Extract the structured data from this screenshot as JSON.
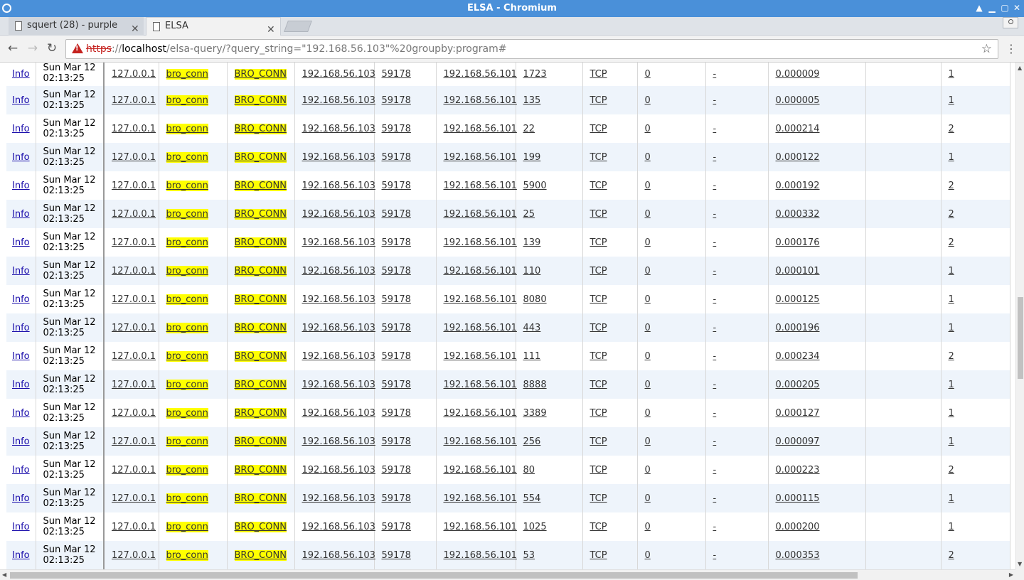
{
  "window": {
    "title": "ELSA - Chromium"
  },
  "tabs": [
    {
      "label": "squert (28) - purple",
      "active": false
    },
    {
      "label": "ELSA",
      "active": true
    }
  ],
  "address_bar": {
    "scheme": "https",
    "host_prefix": "://",
    "host": "localhost",
    "path": "/elsa-query/?query_string=\"192.168.56.103\"%20groupby:program#"
  },
  "results": {
    "info_label": "Info",
    "rows": [
      {
        "date": "Sun Mar 12 02:13:25",
        "host": "127.0.0.1",
        "program": "bro_conn",
        "class": "BRO_CONN",
        "srcip": "192.168.56.103",
        "srcport": "59178",
        "dstip": "192.168.56.101",
        "dstport": "1723",
        "proto": "TCP",
        "c1": "0",
        "c2": "-",
        "duration": "0.000009",
        "c3": "",
        "count": "1"
      },
      {
        "date": "Sun Mar 12 02:13:25",
        "host": "127.0.0.1",
        "program": "bro_conn",
        "class": "BRO_CONN",
        "srcip": "192.168.56.103",
        "srcport": "59178",
        "dstip": "192.168.56.101",
        "dstport": "135",
        "proto": "TCP",
        "c1": "0",
        "c2": "-",
        "duration": "0.000005",
        "c3": "",
        "count": "1"
      },
      {
        "date": "Sun Mar 12 02:13:25",
        "host": "127.0.0.1",
        "program": "bro_conn",
        "class": "BRO_CONN",
        "srcip": "192.168.56.103",
        "srcport": "59178",
        "dstip": "192.168.56.101",
        "dstport": "22",
        "proto": "TCP",
        "c1": "0",
        "c2": "-",
        "duration": "0.000214",
        "c3": "",
        "count": "2"
      },
      {
        "date": "Sun Mar 12 02:13:25",
        "host": "127.0.0.1",
        "program": "bro_conn",
        "class": "BRO_CONN",
        "srcip": "192.168.56.103",
        "srcport": "59178",
        "dstip": "192.168.56.101",
        "dstport": "199",
        "proto": "TCP",
        "c1": "0",
        "c2": "-",
        "duration": "0.000122",
        "c3": "",
        "count": "1"
      },
      {
        "date": "Sun Mar 12 02:13:25",
        "host": "127.0.0.1",
        "program": "bro_conn",
        "class": "BRO_CONN",
        "srcip": "192.168.56.103",
        "srcport": "59178",
        "dstip": "192.168.56.101",
        "dstport": "5900",
        "proto": "TCP",
        "c1": "0",
        "c2": "-",
        "duration": "0.000192",
        "c3": "",
        "count": "2"
      },
      {
        "date": "Sun Mar 12 02:13:25",
        "host": "127.0.0.1",
        "program": "bro_conn",
        "class": "BRO_CONN",
        "srcip": "192.168.56.103",
        "srcport": "59178",
        "dstip": "192.168.56.101",
        "dstport": "25",
        "proto": "TCP",
        "c1": "0",
        "c2": "-",
        "duration": "0.000332",
        "c3": "",
        "count": "2"
      },
      {
        "date": "Sun Mar 12 02:13:25",
        "host": "127.0.0.1",
        "program": "bro_conn",
        "class": "BRO_CONN",
        "srcip": "192.168.56.103",
        "srcport": "59178",
        "dstip": "192.168.56.101",
        "dstport": "139",
        "proto": "TCP",
        "c1": "0",
        "c2": "-",
        "duration": "0.000176",
        "c3": "",
        "count": "2"
      },
      {
        "date": "Sun Mar 12 02:13:25",
        "host": "127.0.0.1",
        "program": "bro_conn",
        "class": "BRO_CONN",
        "srcip": "192.168.56.103",
        "srcport": "59178",
        "dstip": "192.168.56.101",
        "dstport": "110",
        "proto": "TCP",
        "c1": "0",
        "c2": "-",
        "duration": "0.000101",
        "c3": "",
        "count": "1"
      },
      {
        "date": "Sun Mar 12 02:13:25",
        "host": "127.0.0.1",
        "program": "bro_conn",
        "class": "BRO_CONN",
        "srcip": "192.168.56.103",
        "srcport": "59178",
        "dstip": "192.168.56.101",
        "dstport": "8080",
        "proto": "TCP",
        "c1": "0",
        "c2": "-",
        "duration": "0.000125",
        "c3": "",
        "count": "1"
      },
      {
        "date": "Sun Mar 12 02:13:25",
        "host": "127.0.0.1",
        "program": "bro_conn",
        "class": "BRO_CONN",
        "srcip": "192.168.56.103",
        "srcport": "59178",
        "dstip": "192.168.56.101",
        "dstport": "443",
        "proto": "TCP",
        "c1": "0",
        "c2": "-",
        "duration": "0.000196",
        "c3": "",
        "count": "1"
      },
      {
        "date": "Sun Mar 12 02:13:25",
        "host": "127.0.0.1",
        "program": "bro_conn",
        "class": "BRO_CONN",
        "srcip": "192.168.56.103",
        "srcport": "59178",
        "dstip": "192.168.56.101",
        "dstport": "111",
        "proto": "TCP",
        "c1": "0",
        "c2": "-",
        "duration": "0.000234",
        "c3": "",
        "count": "2"
      },
      {
        "date": "Sun Mar 12 02:13:25",
        "host": "127.0.0.1",
        "program": "bro_conn",
        "class": "BRO_CONN",
        "srcip": "192.168.56.103",
        "srcport": "59178",
        "dstip": "192.168.56.101",
        "dstport": "8888",
        "proto": "TCP",
        "c1": "0",
        "c2": "-",
        "duration": "0.000205",
        "c3": "",
        "count": "1"
      },
      {
        "date": "Sun Mar 12 02:13:25",
        "host": "127.0.0.1",
        "program": "bro_conn",
        "class": "BRO_CONN",
        "srcip": "192.168.56.103",
        "srcport": "59178",
        "dstip": "192.168.56.101",
        "dstport": "3389",
        "proto": "TCP",
        "c1": "0",
        "c2": "-",
        "duration": "0.000127",
        "c3": "",
        "count": "1"
      },
      {
        "date": "Sun Mar 12 02:13:25",
        "host": "127.0.0.1",
        "program": "bro_conn",
        "class": "BRO_CONN",
        "srcip": "192.168.56.103",
        "srcport": "59178",
        "dstip": "192.168.56.101",
        "dstport": "256",
        "proto": "TCP",
        "c1": "0",
        "c2": "-",
        "duration": "0.000097",
        "c3": "",
        "count": "1"
      },
      {
        "date": "Sun Mar 12 02:13:25",
        "host": "127.0.0.1",
        "program": "bro_conn",
        "class": "BRO_CONN",
        "srcip": "192.168.56.103",
        "srcport": "59178",
        "dstip": "192.168.56.101",
        "dstport": "80",
        "proto": "TCP",
        "c1": "0",
        "c2": "-",
        "duration": "0.000223",
        "c3": "",
        "count": "2"
      },
      {
        "date": "Sun Mar 12 02:13:25",
        "host": "127.0.0.1",
        "program": "bro_conn",
        "class": "BRO_CONN",
        "srcip": "192.168.56.103",
        "srcport": "59178",
        "dstip": "192.168.56.101",
        "dstport": "554",
        "proto": "TCP",
        "c1": "0",
        "c2": "-",
        "duration": "0.000115",
        "c3": "",
        "count": "1"
      },
      {
        "date": "Sun Mar 12 02:13:25",
        "host": "127.0.0.1",
        "program": "bro_conn",
        "class": "BRO_CONN",
        "srcip": "192.168.56.103",
        "srcport": "59178",
        "dstip": "192.168.56.101",
        "dstport": "1025",
        "proto": "TCP",
        "c1": "0",
        "c2": "-",
        "duration": "0.000200",
        "c3": "",
        "count": "1"
      },
      {
        "date": "Sun Mar 12 02:13:25",
        "host": "127.0.0.1",
        "program": "bro_conn",
        "class": "BRO_CONN",
        "srcip": "192.168.56.103",
        "srcport": "59178",
        "dstip": "192.168.56.101",
        "dstport": "53",
        "proto": "TCP",
        "c1": "0",
        "c2": "-",
        "duration": "0.000353",
        "c3": "",
        "count": "2"
      }
    ]
  },
  "icons": {
    "back": "arrow-left-icon",
    "forward": "arrow-right-icon",
    "reload": "reload-icon",
    "security": "warning-icon",
    "bookmark": "star-icon",
    "menu": "kebab-menu-icon",
    "tab_page": "page-icon"
  },
  "colors": {
    "titlebar": "#4a90d9",
    "highlight": "#ffff00",
    "alt_row": "#eef4fb",
    "link": "#1a0dab",
    "insecure": "#c5221f"
  }
}
